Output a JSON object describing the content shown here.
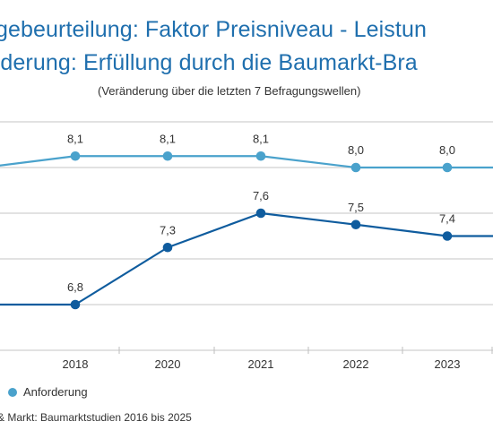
{
  "header": {
    "title_line_1": "gebeurteilung: Faktor Preisniveau - Leistun",
    "title_line_2": "rderung: Erfüllung durch die Baumarkt-Bra",
    "subtitle": "(Veränderung über die letzten 7 Befragungswellen)"
  },
  "legend": {
    "label": "Anforderung"
  },
  "footer": {
    "source": "& Markt: Baumarktstudien 2016 bis 2025"
  },
  "colors": {
    "text_blue": "#1f6fae",
    "series_light": "#4aa2cc",
    "series_dark": "#0f5c9e",
    "grid": "#d9d9d9",
    "text": "#333333"
  },
  "chart_data": {
    "type": "line",
    "categories": [
      "2018",
      "2020",
      "2021",
      "2022",
      "2023"
    ],
    "visible_clipped_prior_values": {
      "Anforderung": 8.0,
      "Erfüllung": 6.8
    },
    "series": [
      {
        "name": "Anforderung",
        "color": "#4aa2cc",
        "values": [
          8.1,
          8.1,
          8.1,
          8.0,
          8.0
        ],
        "value_labels": [
          "8,1",
          "8,1",
          "8,1",
          "8,0",
          "8,0"
        ]
      },
      {
        "name": "",
        "color": "#0f5c9e",
        "values": [
          6.8,
          7.3,
          7.6,
          7.5,
          7.4
        ],
        "value_labels": [
          "6,8",
          "7,3",
          "7,6",
          "7,5",
          "7,4"
        ]
      }
    ],
    "ylim": [
      6.4,
      8.4
    ],
    "grid": "horizontal",
    "legend_position": "bottom-left",
    "xlabel": "",
    "ylabel": ""
  }
}
